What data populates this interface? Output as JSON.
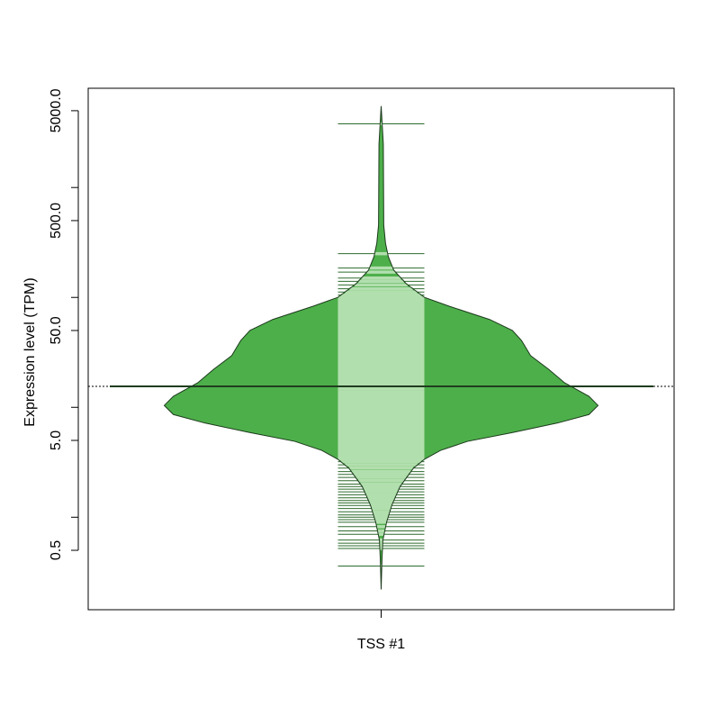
{
  "chart_data": {
    "type": "beanplot",
    "ylabel": "Expression level (TPM)",
    "categories": [
      "TSS #1"
    ],
    "log_y": true,
    "ylim": [
      0.144,
      8000
    ],
    "yticks": [
      {
        "value": 5000,
        "label": "5000.0"
      },
      {
        "value": 500,
        "label": "500.0"
      },
      {
        "value": 50,
        "label": "50.0"
      },
      {
        "value": 5,
        "label": "5.0"
      },
      {
        "value": 0.5,
        "label": "0.5"
      }
    ],
    "yminor_ticks": [
      1000,
      100,
      10,
      1
    ],
    "overall_mean": 15.5,
    "colors": {
      "fill": "#4daf4a",
      "border": "#1c3a1c",
      "beanline": "#2e6b2e",
      "beanline_inside": "#b2dfae",
      "mean": "#1f3d1f"
    },
    "beans": [
      {
        "mean": 15.5,
        "density_y": [
          5500,
          2490,
          455,
          312,
          235,
          177,
          133,
          100,
          83,
          63,
          50,
          40.6,
          29.5,
          22.2,
          16.7,
          12.6,
          10.4,
          8.6,
          7.2,
          5.9,
          4.9,
          4.06,
          3.37,
          2.8,
          1.9,
          1.3,
          0.9,
          0.62,
          0.42,
          0.22
        ],
        "density": [
          0,
          0.01,
          0.012,
          0.02,
          0.033,
          0.058,
          0.116,
          0.2,
          0.315,
          0.5,
          0.605,
          0.647,
          0.689,
          0.772,
          0.846,
          0.958,
          1,
          0.958,
          0.813,
          0.606,
          0.398,
          0.274,
          0.2,
          0.149,
          0.087,
          0.05,
          0.025,
          0.008,
          0.004,
          0
        ],
        "observations": [
          3800,
          250,
          185,
          170,
          150,
          140,
          130,
          120,
          112,
          105,
          100,
          97,
          94.8,
          89.6,
          84.7,
          80.1,
          75.7,
          71.5,
          67.6,
          63.9,
          60.4,
          57.1,
          54,
          51,
          48.2,
          45.6,
          43.1,
          40.7,
          38.5,
          36.4,
          34.4,
          32.5,
          30.7,
          29,
          27.4,
          25.9,
          24.5,
          23.2,
          21.9,
          20.7,
          19.6,
          18.5,
          17.5,
          16.5,
          15.6,
          14.8,
          13.9,
          13.2,
          12.5,
          11.8,
          11.1,
          10.5,
          9.93,
          9.39,
          8.87,
          8.39,
          7.93,
          7.49,
          7.08,
          6.69,
          6.33,
          5.98,
          5.65,
          5.34,
          5.05,
          4.77,
          4.51,
          4.26,
          4.03,
          3.81,
          3.6,
          3.4,
          3.2,
          3,
          2.8,
          2.6,
          2.45,
          2.3,
          2.15,
          2,
          1.9,
          1.8,
          1.7,
          1.6,
          1.5,
          1.42,
          1.35,
          1.28,
          1.2,
          1.12,
          1.05,
          1,
          0.95,
          0.9,
          0.82,
          0.75,
          0.7,
          0.62,
          0.58,
          0.55,
          0.52,
          0.36
        ]
      }
    ]
  }
}
